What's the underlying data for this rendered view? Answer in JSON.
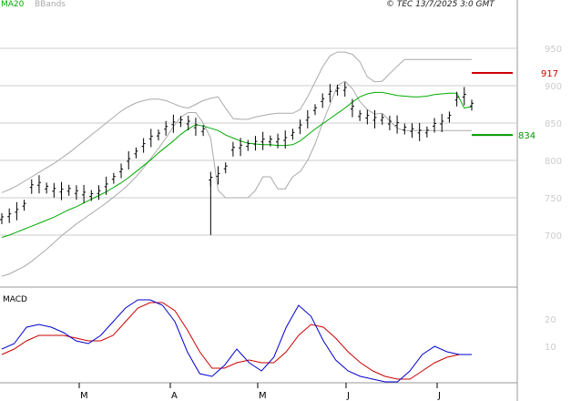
{
  "header": {
    "legend_ma": "MA20",
    "legend_bb": "BBands",
    "credit": "© TEC 13/7/2025 3:0 GMT"
  },
  "colors": {
    "ma": "#00aa00",
    "bbands": "#aaaaaa",
    "macd": "#0000cc",
    "signal": "#cc0000",
    "grid": "#cccccc",
    "price": "#000000",
    "resistance": "#cc0000",
    "support": "#009900"
  },
  "chart_data": [
    {
      "type": "line",
      "title": "",
      "x_labels": [
        "M",
        "A",
        "M",
        "J",
        "J"
      ],
      "y_ticks": [
        700,
        750,
        800,
        850,
        900,
        950
      ],
      "ylim": [
        650,
        985
      ],
      "grid": true,
      "levels": [
        {
          "name": "resistance",
          "value": 917,
          "label": "917"
        },
        {
          "name": "support",
          "value": 834,
          "label": "834"
        }
      ],
      "series": [
        {
          "name": "MA20",
          "values": [
            697,
            700,
            704,
            708,
            712,
            716,
            720,
            724,
            729,
            734,
            738,
            743,
            748,
            753,
            758,
            764,
            770,
            777,
            785,
            793,
            801,
            810,
            818,
            826,
            835,
            842,
            848,
            846,
            843,
            840,
            834,
            830,
            826,
            823,
            822,
            821,
            821,
            820,
            820,
            821,
            826,
            834,
            842,
            849,
            856,
            863,
            870,
            878,
            885,
            889,
            891,
            891,
            889,
            887,
            886,
            885,
            885,
            886,
            888,
            889,
            890,
            890,
            870,
            872
          ]
        },
        {
          "name": "BBands",
          "values": [
            645,
            648,
            653,
            658,
            665,
            673,
            681,
            690,
            699,
            707,
            715,
            722,
            729,
            736,
            743,
            751,
            759,
            768,
            778,
            790,
            803,
            816,
            830,
            845,
            858,
            864,
            864,
            850,
            830,
            760,
            750,
            750,
            750,
            750,
            760,
            778,
            778,
            762,
            762,
            778,
            785,
            800,
            822,
            850,
            875,
            900,
            906,
            896,
            879,
            868,
            862,
            863,
            853,
            843,
            840,
            840,
            840,
            840,
            840,
            840,
            840,
            840,
            840,
            840
          ]
        },
        {
          "name": "BBands upper",
          "values": [
            757,
            761,
            766,
            772,
            778,
            784,
            790,
            796,
            803,
            810,
            818,
            826,
            834,
            842,
            850,
            858,
            866,
            872,
            877,
            880,
            882,
            882,
            880,
            876,
            872,
            870,
            875,
            880,
            883,
            885,
            870,
            856,
            855,
            855,
            858,
            860,
            862,
            863,
            863,
            863,
            868,
            885,
            905,
            925,
            940,
            945,
            945,
            942,
            932,
            912,
            905,
            906,
            916,
            926,
            935,
            935,
            935,
            935,
            935,
            935,
            935,
            935,
            935,
            935
          ]
        },
        {
          "name": "price",
          "values": [
            722,
            726,
            732,
            740,
            765,
            768,
            763,
            760,
            759,
            760,
            757,
            755,
            753,
            757,
            766,
            776,
            786,
            800,
            810,
            820,
            830,
            834,
            843,
            849,
            852,
            850,
            845,
            840,
            775,
            780,
            790,
            815,
            818,
            820,
            823,
            826,
            826,
            826,
            828,
            835,
            845,
            855,
            868,
            880,
            890,
            894,
            895,
            870,
            860,
            858,
            855,
            855,
            850,
            848,
            842,
            840,
            838,
            838,
            847,
            850,
            858,
            882,
            886,
            874
          ]
        }
      ]
    },
    {
      "type": "line",
      "title": "MACD",
      "y_ticks": [
        10,
        20
      ],
      "ylim": [
        -4,
        30
      ],
      "grid": false,
      "series": [
        {
          "name": "MACD",
          "values": [
            9,
            11,
            17,
            18,
            17,
            15,
            12,
            11,
            14,
            19,
            24,
            27,
            27,
            25,
            19,
            8,
            0,
            -1,
            3,
            9,
            4,
            1,
            6,
            17,
            25,
            21,
            12,
            5,
            1,
            -1,
            -2,
            -3,
            -3,
            1,
            7,
            10,
            8,
            7,
            7
          ]
        },
        {
          "name": "signal",
          "values": [
            7,
            9,
            12,
            14,
            14,
            14,
            13,
            12,
            12,
            14,
            19,
            24,
            26,
            26,
            23,
            16,
            8,
            2,
            2,
            4,
            5,
            4,
            4,
            8,
            14,
            18,
            17,
            13,
            8,
            4,
            1,
            -1,
            -2,
            -2,
            1,
            4,
            6,
            7,
            7
          ]
        }
      ]
    }
  ]
}
